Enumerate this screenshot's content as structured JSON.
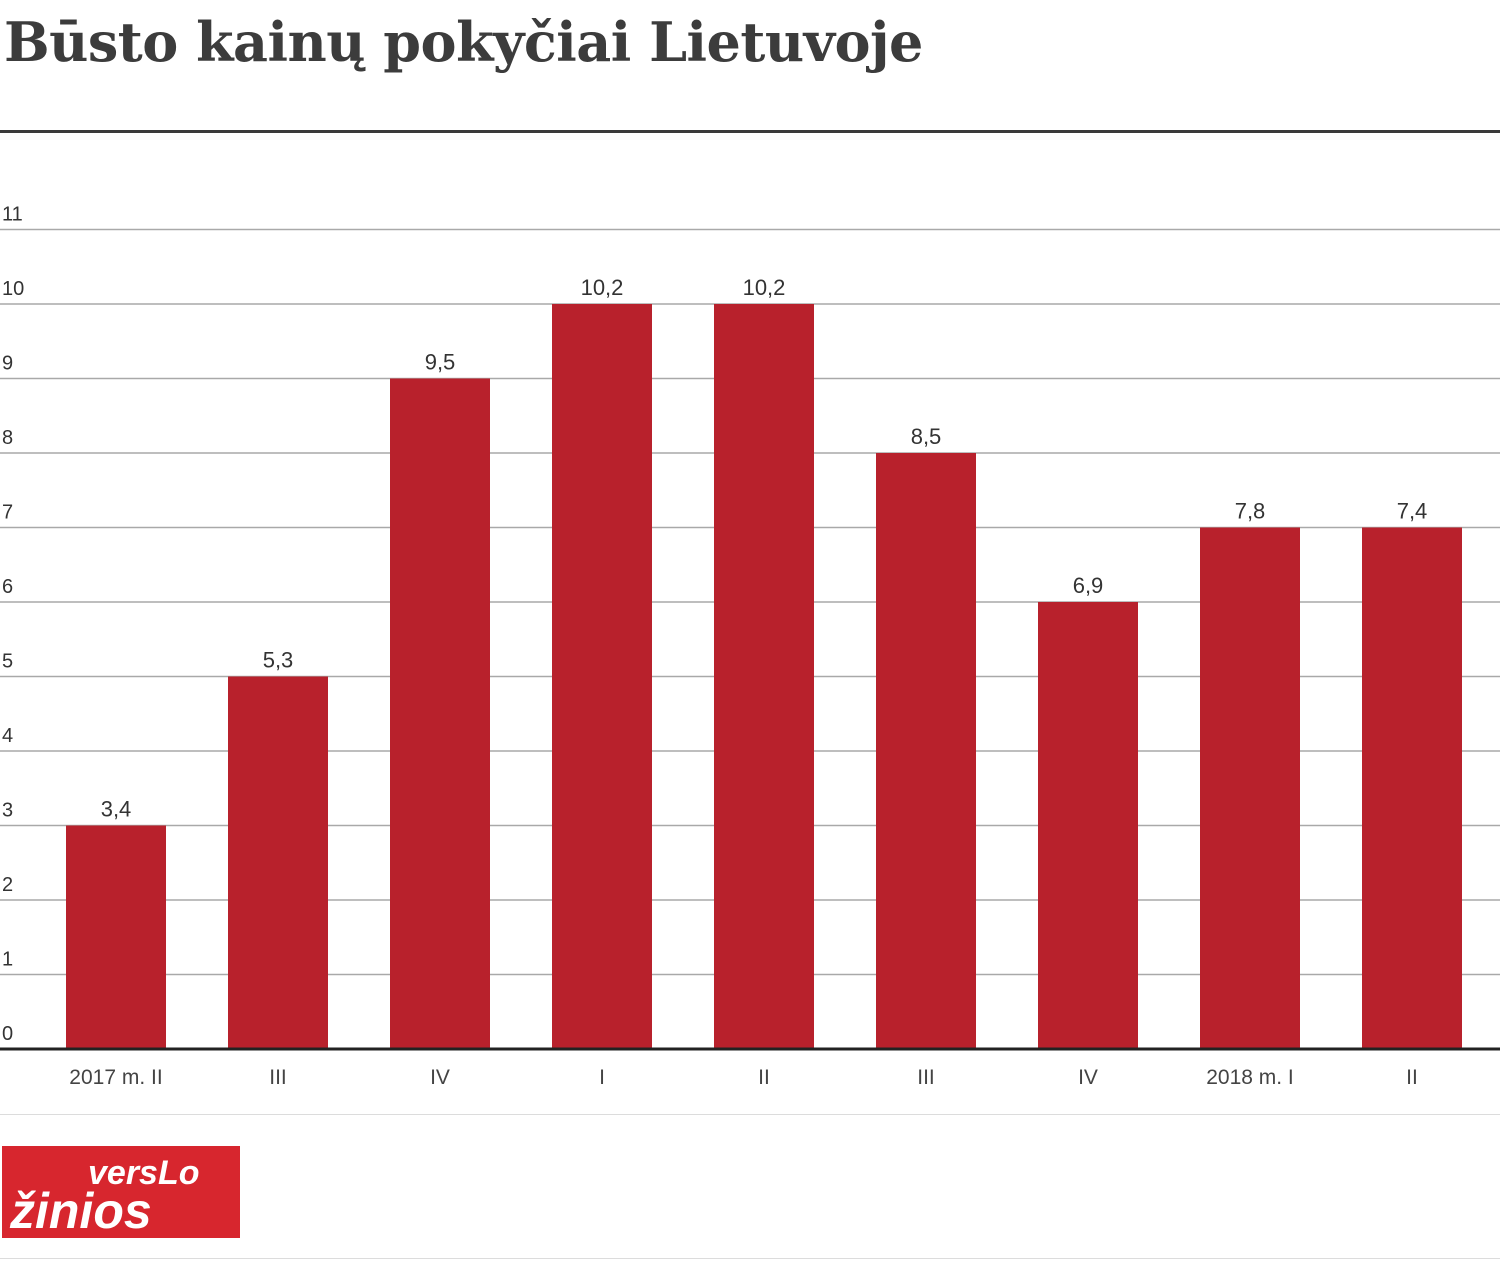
{
  "header": {
    "title": "Būsto kainų pokyčiai Lietuvoje"
  },
  "chart_data": {
    "type": "bar",
    "title": "Būsto kainų pokyčiai Lietuvoje",
    "xlabel": "",
    "ylabel": "",
    "categories": [
      "2017 m. II",
      "III",
      "IV",
      "I",
      "II",
      "III",
      "IV",
      "2018 m. I",
      "II"
    ],
    "values": [
      3.4,
      5.3,
      9.5,
      10.2,
      10.2,
      8.5,
      6.9,
      7.8,
      7.4
    ],
    "value_labels": [
      "3,4",
      "5,3",
      "9,5",
      "10,2",
      "10,2",
      "8,5",
      "6,9",
      "7,8",
      "7,4"
    ],
    "yticks": [
      "0",
      "1",
      "2",
      "3",
      "4",
      "5",
      "6",
      "7",
      "8",
      "9",
      "10",
      "11"
    ],
    "ylim": [
      0,
      11
    ],
    "grid": true,
    "legend": "none",
    "bar_color": "#b8212c",
    "grid_color": "#a9a9a9",
    "axis_color": "#222222"
  },
  "footer": {
    "logo_text_top": "versLo",
    "logo_text_bottom": "žinios",
    "logo_color": "#d7262e"
  }
}
